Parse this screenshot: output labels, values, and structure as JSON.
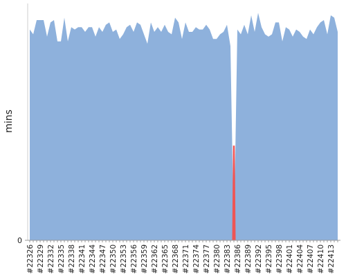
{
  "chart_data": {
    "type": "area",
    "y_label": "mins",
    "categories": [
      "#22326",
      null,
      null,
      "#22329",
      null,
      null,
      "#22332",
      null,
      null,
      "#22335",
      null,
      null,
      "#22338",
      null,
      null,
      "#22341",
      null,
      null,
      "#22344",
      null,
      null,
      "#22347",
      null,
      null,
      "#22350",
      null,
      null,
      "#22353",
      null,
      null,
      "#22356",
      null,
      null,
      "#22359",
      null,
      null,
      "#22362",
      null,
      null,
      "#22365",
      null,
      null,
      "#22368",
      null,
      null,
      "#22371",
      null,
      null,
      "#22374",
      null,
      null,
      "#22377",
      null,
      null,
      "#22380",
      null,
      null,
      "#22383",
      null,
      null,
      "#22386",
      null,
      null,
      "#22389",
      null,
      null,
      "#22392",
      null,
      null,
      "#22395",
      null,
      null,
      "#22398",
      null,
      null,
      "#22401",
      null,
      null,
      "#22404",
      null,
      null,
      "#22407",
      null,
      null,
      "#22410",
      null,
      null,
      "#22413",
      null,
      null
    ],
    "series": [
      {
        "color": "#8eb1dc",
        "values": [
          89,
          87,
          93,
          93,
          93,
          86,
          92,
          93,
          84,
          84,
          94,
          84,
          90,
          89,
          90,
          90,
          88,
          90,
          90,
          86,
          90,
          88,
          91,
          92,
          88,
          89,
          85,
          87,
          90,
          91,
          88,
          92,
          91,
          87,
          83,
          92,
          88,
          90,
          88,
          91,
          88,
          87,
          94,
          92,
          85,
          92,
          88,
          88,
          90,
          89,
          89,
          91,
          89,
          85,
          85,
          87,
          88,
          91,
          82,
          0,
          89,
          87,
          91,
          87,
          95,
          88,
          96,
          90,
          87,
          86,
          87,
          92,
          92,
          84,
          90,
          89,
          86,
          89,
          88,
          86,
          85,
          89,
          87,
          90,
          92,
          93,
          87,
          95,
          94,
          88
        ]
      },
      {
        "color": "#ee5555",
        "values": [
          null,
          null,
          null,
          null,
          null,
          null,
          null,
          null,
          null,
          null,
          null,
          null,
          null,
          null,
          null,
          null,
          null,
          null,
          null,
          null,
          null,
          null,
          null,
          null,
          null,
          null,
          null,
          null,
          null,
          null,
          null,
          null,
          null,
          null,
          null,
          null,
          null,
          null,
          null,
          null,
          null,
          null,
          null,
          null,
          null,
          null,
          null,
          null,
          null,
          null,
          null,
          null,
          null,
          null,
          null,
          null,
          null,
          null,
          null,
          40,
          null,
          null,
          null,
          null,
          null,
          null,
          null,
          null,
          null,
          null,
          null,
          null,
          null,
          null,
          null,
          null,
          null,
          null,
          null,
          null,
          null,
          null,
          null,
          null,
          null,
          null,
          null,
          null,
          null,
          null
        ]
      }
    ],
    "ylim": [
      0,
      100
    ],
    "yticks": [
      0
    ]
  }
}
